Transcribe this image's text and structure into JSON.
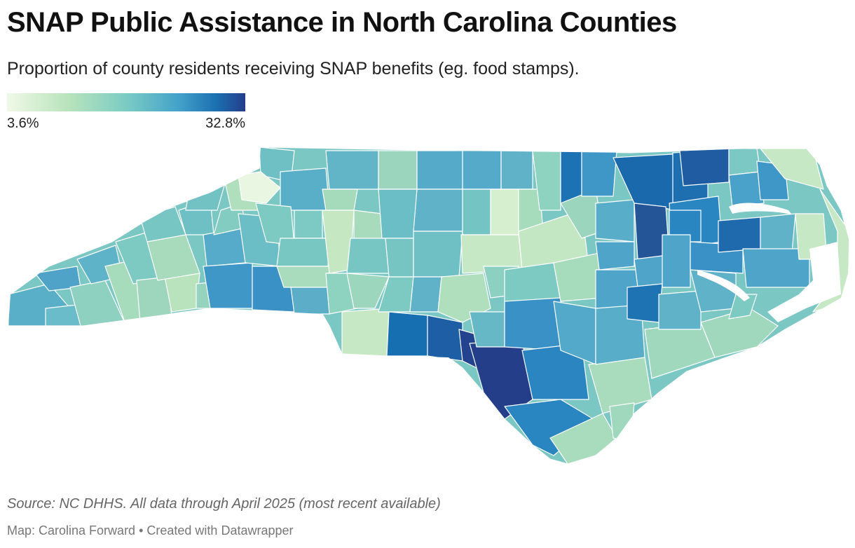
{
  "title": "SNAP Public Assistance in North Carolina Counties",
  "subtitle": "Proportion of county residents receiving SNAP benefits (eg. food stamps).",
  "legend": {
    "min_label": "3.6%",
    "max_label": "32.8%",
    "min_value": 3.6,
    "max_value": 32.8,
    "colors": [
      "#f0f9e8",
      "#bae4bc",
      "#7bccc4",
      "#43a2ca",
      "#0868ac",
      "#253d8a"
    ]
  },
  "map": {
    "state": "North Carolina",
    "outline_color": "#ffffff",
    "water_color": "#ffffff"
  },
  "source": "Source: NC DHHS. All data through April 2025 (most recent available)",
  "credit": {
    "map_by": "Map: Carolina Forward",
    "separator": "•",
    "tool": "Created with Datawrapper"
  }
}
